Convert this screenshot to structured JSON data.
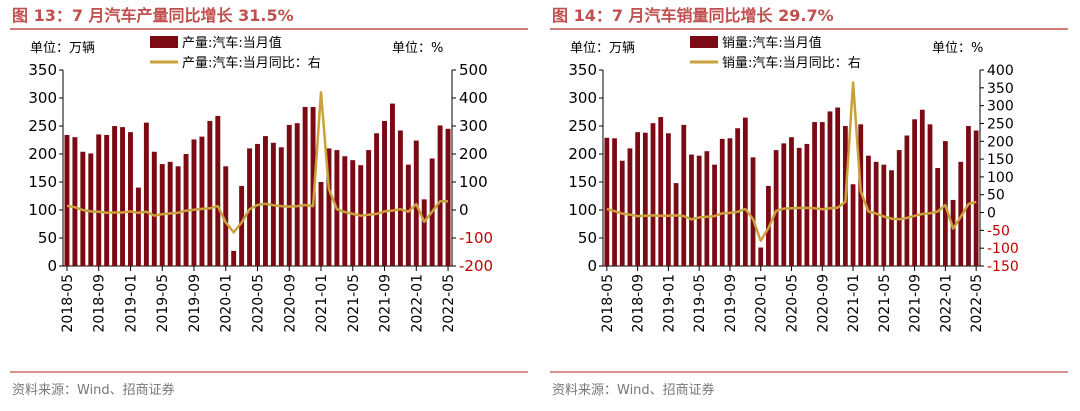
{
  "colors": {
    "title": "#c0504d",
    "bar": "#7b0a14",
    "line": "#c9a13c",
    "axis": "#000000",
    "neg": "#c00000",
    "rule": "#c0504d",
    "source": "#777777"
  },
  "chart_data": [
    {
      "type": "bar",
      "title": "图 13：7 月汽车产量同比增长 31.5%",
      "unit_left": "单位：万辆",
      "unit_right": "单位：%",
      "source": "资料来源：Wind、招商证券",
      "legend": [
        "产量:汽车:当月值",
        "产量:汽车:当月同比：右"
      ],
      "xtick_labels": [
        "2018-05",
        "2018-09",
        "2019-01",
        "2019-05",
        "2019-09",
        "2020-01",
        "2020-05",
        "2020-09",
        "2021-01",
        "2021-05",
        "2021-09",
        "2022-01",
        "2022-05"
      ],
      "ylim": [
        0,
        350
      ],
      "yticks": [
        0,
        50,
        100,
        150,
        200,
        250,
        300,
        350
      ],
      "y2lim": [
        -200,
        500
      ],
      "y2ticks": [
        -200,
        -100,
        0,
        100,
        200,
        300,
        400,
        500
      ],
      "series": [
        {
          "name": "产量:汽车:当月值",
          "axis": "left",
          "values": [
            234,
            230,
            204,
            201,
            235,
            234,
            250,
            248,
            239,
            140,
            256,
            204,
            182,
            186,
            178,
            200,
            226,
            231,
            259,
            268,
            178,
            27,
            143,
            210,
            218,
            232,
            220,
            212,
            252,
            255,
            284,
            284,
            150,
            210,
            207,
            196,
            189,
            180,
            207,
            237,
            259,
            290,
            242,
            181,
            224,
            119,
            192,
            251,
            245
          ]
        },
        {
          "name": "产量:汽车:当月同比：右",
          "axis": "right",
          "values": [
            15,
            10,
            0,
            -5,
            -6,
            -10,
            -9,
            -9,
            -5,
            -10,
            -6,
            -20,
            -15,
            -12,
            -10,
            -2,
            1,
            4,
            6,
            14,
            -44,
            -80,
            -45,
            3,
            18,
            22,
            17,
            14,
            12,
            14,
            18,
            14,
            420,
            75,
            3,
            -7,
            -14,
            -20,
            -17,
            -14,
            -5,
            -2,
            3,
            -6,
            21,
            -42,
            -6,
            31,
            31
          ]
        }
      ]
    },
    {
      "type": "bar",
      "title": "图 14：7 月汽车销量同比增长 29.7%",
      "unit_left": "单位：万辆",
      "unit_right": "单位：%",
      "source": "资料来源：Wind、招商证券",
      "legend": [
        "销量:汽车:当月值",
        "销量:汽车:当月同比：右"
      ],
      "xtick_labels": [
        "2018-05",
        "2018-09",
        "2019-01",
        "2019-05",
        "2019-09",
        "2020-01",
        "2020-05",
        "2020-09",
        "2021-01",
        "2021-05",
        "2021-09",
        "2022-01",
        "2022-05"
      ],
      "ylim": [
        0,
        350
      ],
      "yticks": [
        0,
        50,
        100,
        150,
        200,
        250,
        300,
        350
      ],
      "y2lim": [
        -150,
        400
      ],
      "y2ticks": [
        -150,
        -100,
        -50,
        0,
        50,
        100,
        150,
        200,
        250,
        300,
        350,
        400
      ],
      "series": [
        {
          "name": "销量:汽车:当月值",
          "axis": "left",
          "values": [
            229,
            228,
            188,
            210,
            239,
            238,
            255,
            266,
            237,
            148,
            252,
            199,
            197,
            205,
            181,
            227,
            228,
            246,
            265,
            194,
            33,
            143,
            207,
            219,
            230,
            211,
            218,
            257,
            257,
            276,
            283,
            250,
            146,
            253,
            197,
            186,
            181,
            171,
            207,
            233,
            262,
            279,
            253,
            175,
            223,
            118,
            186,
            250,
            242
          ]
        },
        {
          "name": "销量:汽车:当月同比：右",
          "axis": "right",
          "values": [
            10,
            4,
            -3,
            -6,
            -10,
            -9,
            -8,
            -9,
            -9,
            -8,
            -10,
            -19,
            -14,
            -12,
            -10,
            -2,
            -1,
            2,
            10,
            -18,
            -79,
            -44,
            5,
            11,
            12,
            13,
            13,
            12,
            9,
            12,
            14,
            30,
            365,
            60,
            3,
            -3,
            -11,
            -17,
            -19,
            -15,
            -9,
            -4,
            -2,
            3,
            21,
            -45,
            -12,
            24,
            30
          ]
        }
      ]
    }
  ]
}
